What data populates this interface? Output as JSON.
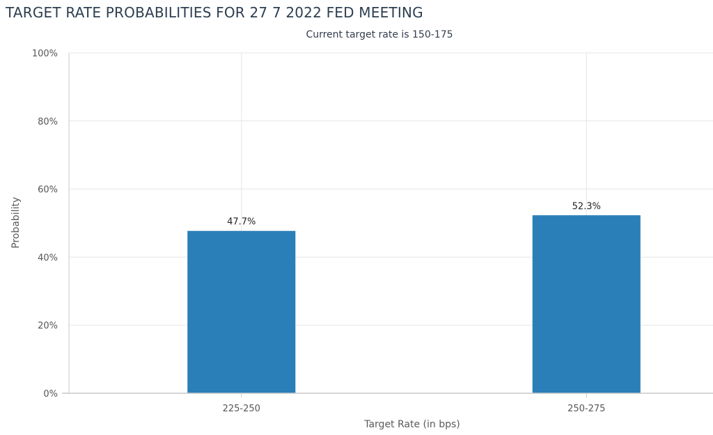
{
  "chart_data": {
    "type": "bar",
    "title": "TARGET RATE PROBABILITIES FOR 27 7 2022 FED MEETING",
    "subtitle": "Current target rate is 150-175",
    "categories": [
      "225-250",
      "250-275"
    ],
    "values": [
      47.7,
      52.3
    ],
    "data_labels": [
      "47.7%",
      "52.3%"
    ],
    "xlabel": "Target Rate (in bps)",
    "ylabel": "Probability",
    "ylim": [
      0,
      100
    ],
    "yticks": [
      0,
      20,
      40,
      60,
      80,
      100
    ],
    "ytick_labels": [
      "0%",
      "20%",
      "40%",
      "60%",
      "80%",
      "100%"
    ],
    "grid": true,
    "bar_color": "#2a7fb8",
    "grid_color": "#e6e6e6",
    "axis_color": "#c8c8c8"
  }
}
